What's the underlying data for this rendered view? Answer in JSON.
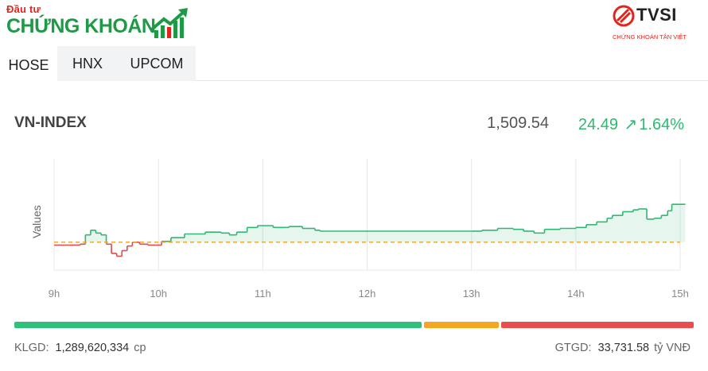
{
  "logo": {
    "top": "Đầu tư",
    "main": "CHỨNG KHOÁN"
  },
  "brand": {
    "name": "TVSI",
    "sub": "CHỨNG KHOÁN TÂN VIỆT"
  },
  "tabs": [
    {
      "label": "HOSE",
      "active": true
    },
    {
      "label": "HNX",
      "active": false
    },
    {
      "label": "UPCOM",
      "active": false
    }
  ],
  "index": {
    "name": "VN-INDEX",
    "value": "1,509.54",
    "change": "24.49",
    "change_pct": "1.64%"
  },
  "colors": {
    "up": "#2fb872",
    "down": "#e04a4a",
    "reference": "#f5a623",
    "brand_green": "#1e9a46",
    "brand_red": "#e1251b"
  },
  "chart_data": {
    "type": "area",
    "xlabel": "",
    "ylabel": "Values",
    "x_ticks": [
      "9h",
      "10h",
      "11h",
      "12h",
      "13h",
      "14h",
      "15h"
    ],
    "reference": 1485.05,
    "ylim": [
      1470,
      1530
    ],
    "series": [
      {
        "points": [
          [
            9.0,
            1483.5
          ],
          [
            9.15,
            1483.5
          ],
          [
            9.25,
            1484.0
          ],
          [
            9.3,
            1489.0
          ],
          [
            9.35,
            1491.5
          ],
          [
            9.4,
            1490.0
          ],
          [
            9.45,
            1489.0
          ],
          [
            9.5,
            1484.0
          ],
          [
            9.55,
            1479.0
          ],
          [
            9.6,
            1477.5
          ],
          [
            9.65,
            1480.5
          ],
          [
            9.7,
            1483.0
          ],
          [
            9.75,
            1485.0
          ],
          [
            9.82,
            1484.0
          ],
          [
            9.9,
            1483.5
          ],
          [
            9.97,
            1483.5
          ],
          [
            10.03,
            1485.5
          ],
          [
            10.12,
            1487.5
          ],
          [
            10.25,
            1489.5
          ],
          [
            10.45,
            1490.5
          ],
          [
            10.6,
            1490.0
          ],
          [
            10.68,
            1489.0
          ],
          [
            10.75,
            1490.5
          ],
          [
            10.85,
            1493.0
          ],
          [
            10.95,
            1494.0
          ],
          [
            11.1,
            1493.0
          ],
          [
            11.25,
            1493.5
          ],
          [
            11.38,
            1492.5
          ],
          [
            11.5,
            1491.5
          ],
          [
            11.55,
            1491.0
          ],
          [
            12.0,
            1491.0
          ],
          [
            12.5,
            1491.0
          ],
          [
            13.0,
            1491.0
          ],
          [
            13.1,
            1491.5
          ],
          [
            13.25,
            1492.5
          ],
          [
            13.4,
            1492.0
          ],
          [
            13.5,
            1491.0
          ],
          [
            13.6,
            1490.0
          ],
          [
            13.7,
            1492.0
          ],
          [
            13.85,
            1492.5
          ],
          [
            14.0,
            1493.0
          ],
          [
            14.1,
            1494.5
          ],
          [
            14.2,
            1496.0
          ],
          [
            14.3,
            1498.0
          ],
          [
            14.35,
            1499.5
          ],
          [
            14.45,
            1501.5
          ],
          [
            14.55,
            1502.5
          ],
          [
            14.6,
            1503.0
          ],
          [
            14.68,
            1497.5
          ],
          [
            14.75,
            1498.0
          ],
          [
            14.82,
            1499.5
          ],
          [
            14.88,
            1502.0
          ],
          [
            14.92,
            1505.5
          ],
          [
            15.0,
            1505.5
          ],
          [
            15.05,
            1505.5
          ]
        ]
      }
    ]
  },
  "progress": {
    "up_ratio": 0.6,
    "flat_ratio": 0.11,
    "down_ratio": 0.29
  },
  "footer": {
    "klgd_label": "KLGD:",
    "klgd_value": "1,289,620,334",
    "klgd_unit": "cp",
    "gtgd_label": "GTGD:",
    "gtgd_value": "33,731.58",
    "gtgd_unit": "tỷ VNĐ"
  }
}
